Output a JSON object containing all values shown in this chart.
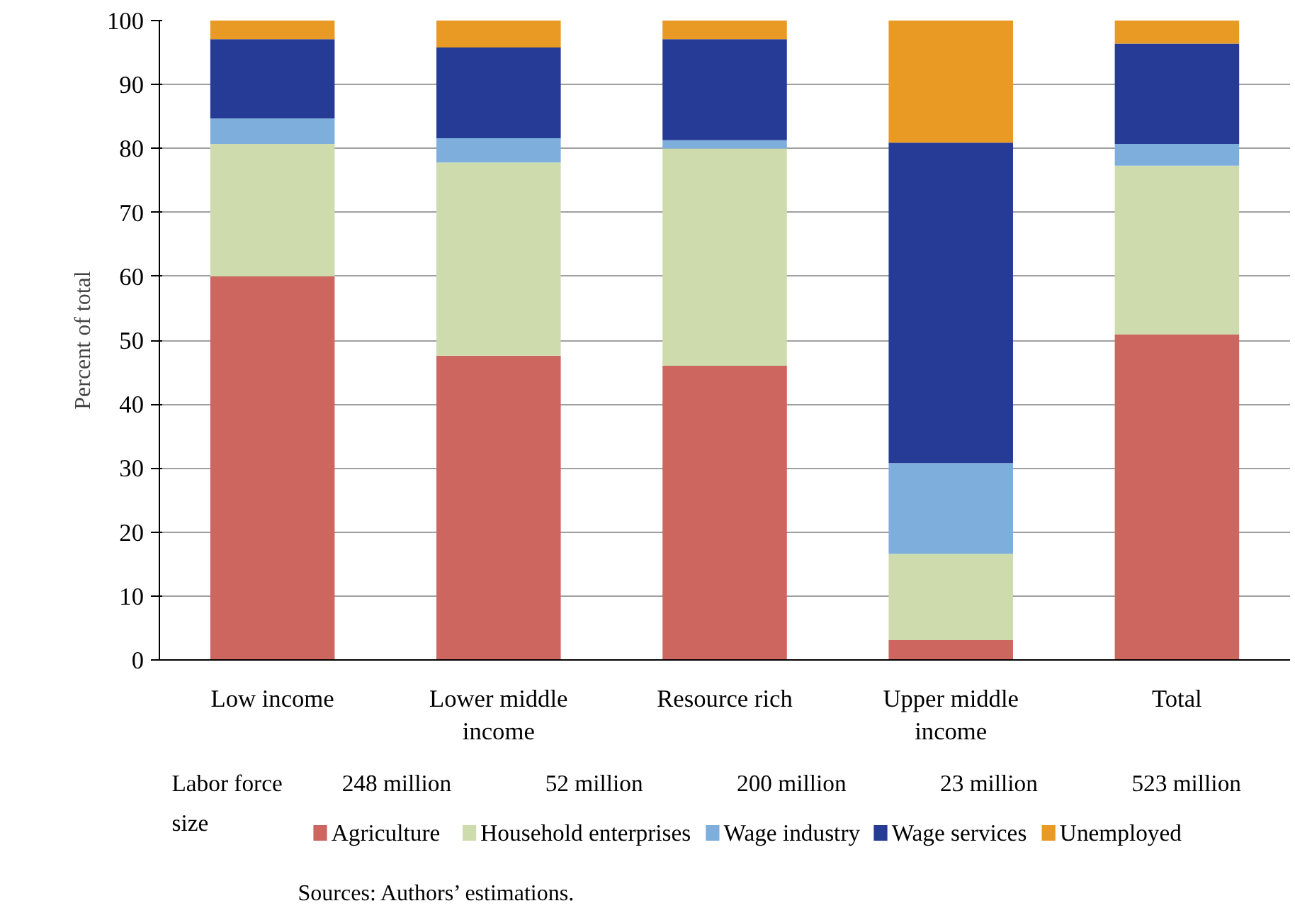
{
  "chart_data": {
    "type": "bar",
    "stacked": true,
    "ylabel": "Percent of total",
    "categories": [
      "Low income",
      "Lower middle income",
      "Resource rich",
      "Upper middle income",
      "Total"
    ],
    "series": [
      {
        "name": "Agriculture",
        "color": "#cd665f",
        "values": [
          60.0,
          47.6,
          46.0,
          3.1,
          50.9
        ]
      },
      {
        "name": "Household enterprises",
        "color": "#cedcad",
        "values": [
          20.7,
          30.2,
          34.0,
          13.5,
          26.4
        ]
      },
      {
        "name": "Wage industry",
        "color": "#7eaedc",
        "values": [
          4.0,
          3.8,
          1.3,
          14.2,
          3.4
        ]
      },
      {
        "name": "Wage services",
        "color": "#253b96",
        "values": [
          12.4,
          14.2,
          15.8,
          50.1,
          15.7
        ]
      },
      {
        "name": "Unemployed",
        "color": "#e99a24",
        "values": [
          2.9,
          4.2,
          2.9,
          19.1,
          3.6
        ]
      }
    ],
    "ylim": [
      0,
      100
    ],
    "yticks": [
      0,
      10,
      20,
      30,
      40,
      50,
      60,
      70,
      80,
      90,
      100
    ],
    "grid": "y",
    "legend": "bottom",
    "annotations": [
      "Labor force size",
      "248 million",
      "52 million",
      "200 million",
      "23 million",
      "523 million",
      "Sources: Authors’ estimations."
    ]
  }
}
